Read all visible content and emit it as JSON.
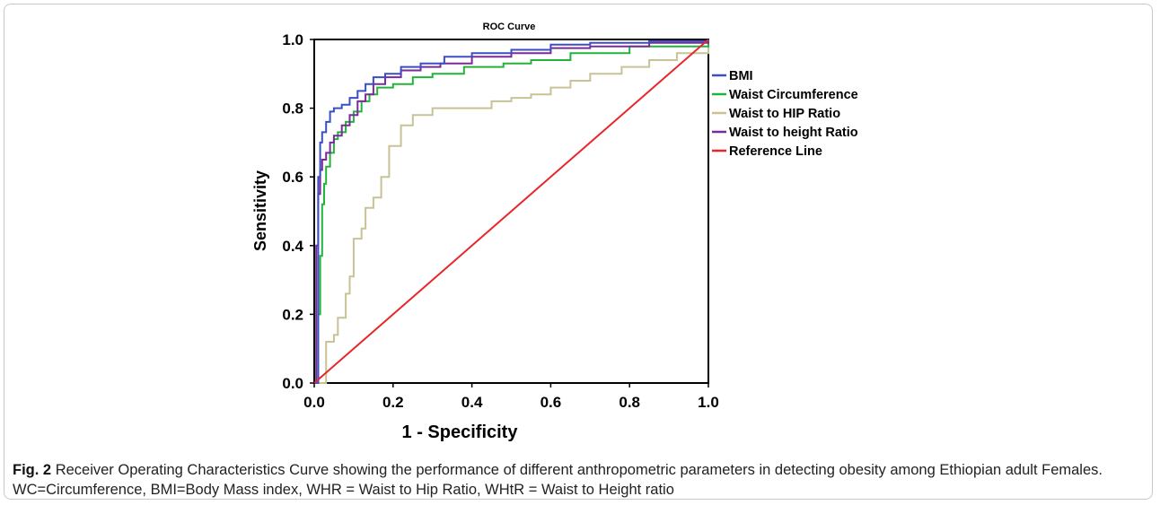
{
  "figure": {
    "label": "Fig. 2",
    "caption": "Receiver Operating Characteristics Curve showing the performance of different anthropometric parameters in detecting obesity among Ethiopian adult Females. WC=Circumference, BMI=Body Mass index, WHR = Waist to Hip Ratio, WHtR = Waist to Height ratio"
  },
  "chart_data": {
    "type": "line",
    "title": "ROC Curve",
    "xlabel": "1 - Specificity",
    "ylabel": "Sensitivity",
    "xlim": [
      0,
      1
    ],
    "ylim": [
      0,
      1
    ],
    "xticks": [
      "0.0",
      "0.2",
      "0.4",
      "0.6",
      "0.8",
      "1.0"
    ],
    "yticks": [
      "0.0",
      "0.2",
      "0.4",
      "0.6",
      "0.8",
      "1.0"
    ],
    "grid": false,
    "legend_position": "right",
    "series": [
      {
        "name": "BMI",
        "color": "#3b4fc4",
        "points": [
          [
            0,
            0
          ],
          [
            0.01,
            0.3
          ],
          [
            0.01,
            0.6
          ],
          [
            0.015,
            0.7
          ],
          [
            0.02,
            0.73
          ],
          [
            0.03,
            0.76
          ],
          [
            0.04,
            0.79
          ],
          [
            0.05,
            0.8
          ],
          [
            0.07,
            0.81
          ],
          [
            0.09,
            0.83
          ],
          [
            0.11,
            0.85
          ],
          [
            0.13,
            0.87
          ],
          [
            0.15,
            0.89
          ],
          [
            0.18,
            0.9
          ],
          [
            0.22,
            0.92
          ],
          [
            0.27,
            0.93
          ],
          [
            0.33,
            0.95
          ],
          [
            0.4,
            0.96
          ],
          [
            0.5,
            0.97
          ],
          [
            0.6,
            0.985
          ],
          [
            0.7,
            0.99
          ],
          [
            0.85,
            0.995
          ],
          [
            1.0,
            1.0
          ]
        ]
      },
      {
        "name": "Waist Circumference",
        "color": "#22b43a",
        "points": [
          [
            0,
            0
          ],
          [
            0.01,
            0.2
          ],
          [
            0.015,
            0.37
          ],
          [
            0.02,
            0.52
          ],
          [
            0.025,
            0.58
          ],
          [
            0.03,
            0.63
          ],
          [
            0.04,
            0.67
          ],
          [
            0.05,
            0.71
          ],
          [
            0.06,
            0.73
          ],
          [
            0.08,
            0.76
          ],
          [
            0.1,
            0.79
          ],
          [
            0.12,
            0.82
          ],
          [
            0.14,
            0.84
          ],
          [
            0.16,
            0.86
          ],
          [
            0.2,
            0.87
          ],
          [
            0.25,
            0.89
          ],
          [
            0.3,
            0.9
          ],
          [
            0.38,
            0.92
          ],
          [
            0.48,
            0.93
          ],
          [
            0.55,
            0.94
          ],
          [
            0.65,
            0.96
          ],
          [
            0.8,
            0.98
          ],
          [
            1.0,
            1.0
          ]
        ]
      },
      {
        "name": "Waist to HIP Ratio",
        "color": "#c8c296",
        "points": [
          [
            0,
            0
          ],
          [
            0.03,
            0.02
          ],
          [
            0.03,
            0.12
          ],
          [
            0.05,
            0.14
          ],
          [
            0.06,
            0.19
          ],
          [
            0.08,
            0.26
          ],
          [
            0.09,
            0.31
          ],
          [
            0.1,
            0.42
          ],
          [
            0.12,
            0.45
          ],
          [
            0.13,
            0.51
          ],
          [
            0.15,
            0.54
          ],
          [
            0.17,
            0.6
          ],
          [
            0.19,
            0.69
          ],
          [
            0.22,
            0.75
          ],
          [
            0.25,
            0.78
          ],
          [
            0.3,
            0.8
          ],
          [
            0.4,
            0.8
          ],
          [
            0.45,
            0.82
          ],
          [
            0.5,
            0.83
          ],
          [
            0.55,
            0.84
          ],
          [
            0.6,
            0.86
          ],
          [
            0.65,
            0.88
          ],
          [
            0.7,
            0.9
          ],
          [
            0.78,
            0.92
          ],
          [
            0.85,
            0.94
          ],
          [
            0.92,
            0.96
          ],
          [
            1.0,
            1.0
          ]
        ]
      },
      {
        "name": "Waist to height Ratio",
        "color": "#7a2a9a",
        "points": [
          [
            0,
            0
          ],
          [
            0.005,
            0.4
          ],
          [
            0.01,
            0.55
          ],
          [
            0.015,
            0.62
          ],
          [
            0.02,
            0.65
          ],
          [
            0.03,
            0.67
          ],
          [
            0.04,
            0.7
          ],
          [
            0.05,
            0.72
          ],
          [
            0.07,
            0.75
          ],
          [
            0.09,
            0.78
          ],
          [
            0.11,
            0.82
          ],
          [
            0.13,
            0.84
          ],
          [
            0.15,
            0.87
          ],
          [
            0.18,
            0.89
          ],
          [
            0.22,
            0.91
          ],
          [
            0.27,
            0.92
          ],
          [
            0.32,
            0.93
          ],
          [
            0.4,
            0.95
          ],
          [
            0.5,
            0.96
          ],
          [
            0.6,
            0.975
          ],
          [
            0.7,
            0.98
          ],
          [
            0.85,
            0.99
          ],
          [
            1.0,
            1.0
          ]
        ]
      },
      {
        "name": "Reference Line",
        "color": "#e8262a",
        "points": [
          [
            0,
            0
          ],
          [
            1,
            1
          ]
        ]
      }
    ]
  }
}
